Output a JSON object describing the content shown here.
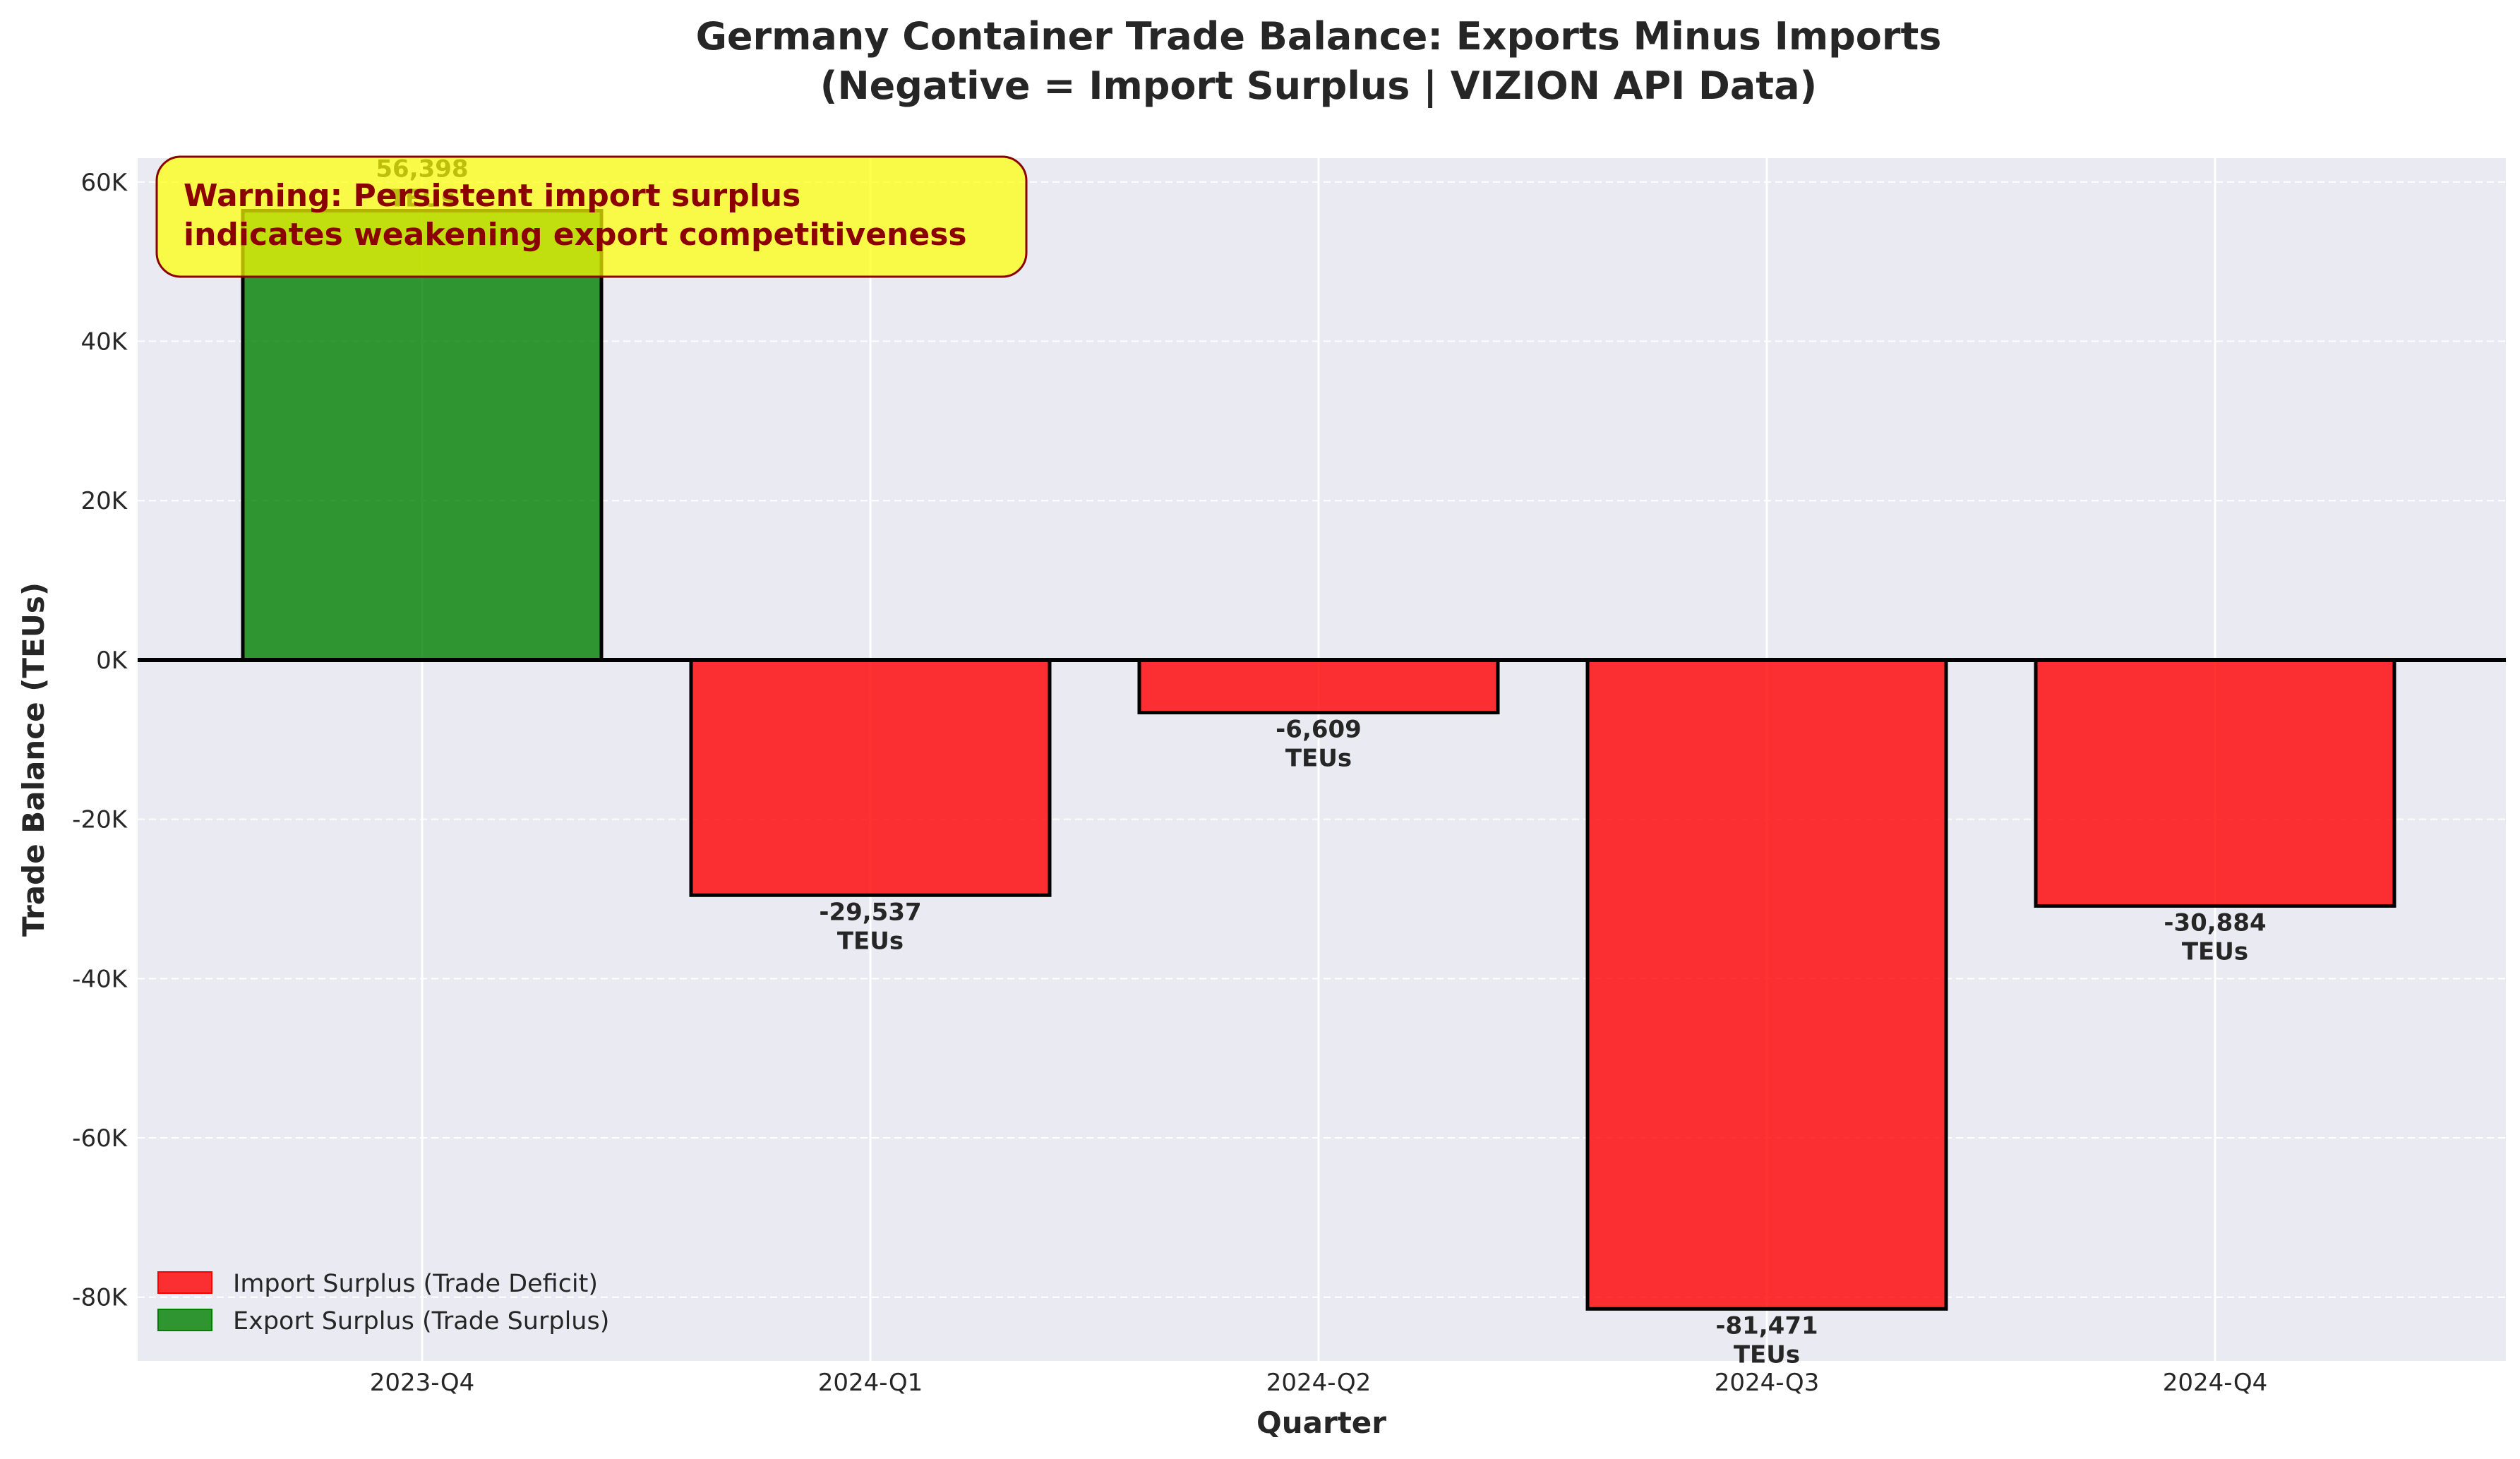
{
  "chart_data": {
    "type": "bar",
    "title_line1": "Germany Container Trade Balance: Exports Minus Imports",
    "title_line2": "(Negative = Import Surplus | VIZION API Data)",
    "xlabel": "Quarter",
    "ylabel": "Trade Balance (TEUs)",
    "categories": [
      "2023-Q4",
      "2024-Q1",
      "2024-Q2",
      "2024-Q3",
      "2024-Q4"
    ],
    "values": [
      56398,
      -29537,
      -6609,
      -81471,
      -30884
    ],
    "value_labels": [
      "56,398",
      "-29,537",
      "-6,609",
      "-81,471",
      "-30,884"
    ],
    "unit_label": "TEUs",
    "ylim": [
      -88000,
      63000
    ],
    "yticks": [
      -80000,
      -60000,
      -40000,
      -20000,
      0,
      20000,
      40000,
      60000
    ],
    "ytick_labels": [
      "-80K",
      "-60K",
      "-40K",
      "-20K",
      "0K",
      "20K",
      "40K",
      "60K"
    ],
    "grid": true,
    "legend_position": "bottom-left",
    "legend": [
      {
        "label": "Import Surplus (Trade Deficit)",
        "color": "#ff0000"
      },
      {
        "label": "Export Surplus (Trade Surplus)",
        "color": "#008000"
      }
    ],
    "annotation": {
      "line1": "Warning: Persistent import surplus",
      "line2": "indicates weakening export competitiveness"
    },
    "colors": {
      "positive": "#008000",
      "negative": "#ff0000",
      "plot_bg": "#eaeaf2",
      "annotation_bg": "#ffff00",
      "annotation_text": "#8b0000"
    }
  }
}
